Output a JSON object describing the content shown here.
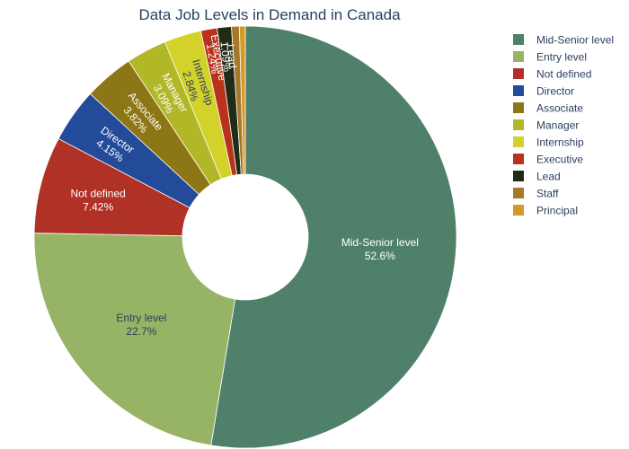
{
  "chart_data": {
    "type": "pie",
    "subtype": "donut",
    "title": "Data Job Levels in Demand in Canada",
    "legend_position": "right",
    "slices": [
      {
        "label": "Mid-Senior level",
        "value": 52.6,
        "text": "52.6%",
        "color": "#4f806a"
      },
      {
        "label": "Entry level",
        "value": 22.7,
        "text": "22.7%",
        "color": "#97b365"
      },
      {
        "label": "Not defined",
        "value": 7.42,
        "text": "7.42%",
        "color": "#b03226"
      },
      {
        "label": "Director",
        "value": 4.15,
        "text": "4.15%",
        "color": "#244b99"
      },
      {
        "label": "Associate",
        "value": 3.82,
        "text": "3.82%",
        "color": "#8d7615"
      },
      {
        "label": "Manager",
        "value": 3.09,
        "text": "3.09%",
        "color": "#b2b727"
      },
      {
        "label": "Internship",
        "value": 2.84,
        "text": "2.84%",
        "color": "#d2d22a"
      },
      {
        "label": "Executive",
        "value": 1.24,
        "text": "1.24%",
        "color": "#b8321c"
      },
      {
        "label": "Lead",
        "value": 1.09,
        "text": "1.09%",
        "color": "#222b16"
      },
      {
        "label": "Staff",
        "value": 0.6,
        "text": "",
        "color": "#a6792a"
      },
      {
        "label": "Principal",
        "value": 0.45,
        "text": "",
        "color": "#d59a26"
      }
    ]
  }
}
